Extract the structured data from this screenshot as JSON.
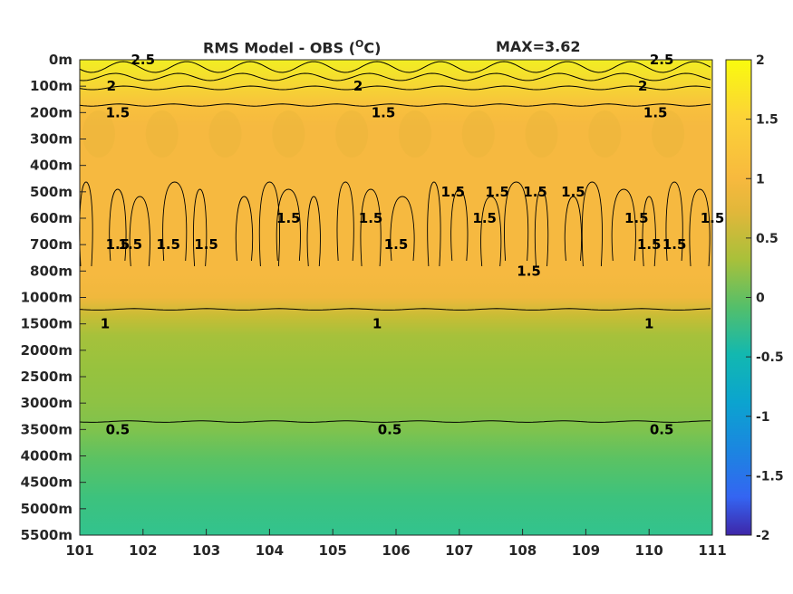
{
  "title": {
    "main": "RMS Model - OBS (",
    "unit_sup": "O",
    "unit_rest": "C)",
    "max_label": "MAX=3.62"
  },
  "chart_data": {
    "type": "heatmap",
    "title": "RMS Model - OBS (oC)   MAX=3.62",
    "xlabel": "",
    "ylabel": "",
    "x_ticks": [
      "101",
      "102",
      "103",
      "104",
      "105",
      "106",
      "107",
      "108",
      "109",
      "110",
      "111"
    ],
    "y_ticks": [
      "0m",
      "100m",
      "200m",
      "300m",
      "400m",
      "500m",
      "600m",
      "700m",
      "800m",
      "1000m",
      "1500m",
      "2000m",
      "2500m",
      "3000m",
      "3500m",
      "4000m",
      "4500m",
      "5000m",
      "5500m"
    ],
    "xlim": [
      101,
      111
    ],
    "ylim_levels": [
      "0m",
      "5500m"
    ],
    "y_reversed": true,
    "colorbar": {
      "range": [
        -2,
        2
      ],
      "ticks": [
        "2",
        "1.5",
        "1",
        "0.5",
        "0",
        "-0.5",
        "-1",
        "-1.5",
        "-2"
      ],
      "colormap": "parula"
    },
    "depth_profile": [
      {
        "depth": "0m",
        "value": 2.3
      },
      {
        "depth": "100m",
        "value": 1.9
      },
      {
        "depth": "200m",
        "value": 1.42
      },
      {
        "depth": "300m",
        "value": 1.38
      },
      {
        "depth": "400m",
        "value": 1.4
      },
      {
        "depth": "500m",
        "value": 1.45
      },
      {
        "depth": "600m",
        "value": 1.47
      },
      {
        "depth": "700m",
        "value": 1.47
      },
      {
        "depth": "800m",
        "value": 1.45
      },
      {
        "depth": "1000m",
        "value": 1.15
      },
      {
        "depth": "1500m",
        "value": 0.82
      },
      {
        "depth": "2000m",
        "value": 0.8
      },
      {
        "depth": "2500m",
        "value": 0.78
      },
      {
        "depth": "3000m",
        "value": 0.72
      },
      {
        "depth": "3500m",
        "value": 0.6
      },
      {
        "depth": "4000m",
        "value": 0.52
      },
      {
        "depth": "4500m",
        "value": 0.45
      },
      {
        "depth": "5000m",
        "value": 0.42
      },
      {
        "depth": "5500m",
        "value": 0.4
      }
    ],
    "contour_levels": [
      "0.5",
      "1",
      "1.5",
      "2",
      "2.5"
    ],
    "contour_labels": [
      {
        "text": "2.5",
        "x": 102.0,
        "depth": "0m"
      },
      {
        "text": "2.5",
        "x": 110.2,
        "depth": "0m"
      },
      {
        "text": "2",
        "x": 101.5,
        "depth": "100m"
      },
      {
        "text": "2",
        "x": 105.4,
        "depth": "100m"
      },
      {
        "text": "2",
        "x": 109.9,
        "depth": "100m"
      },
      {
        "text": "1.5",
        "x": 101.6,
        "depth": "200m"
      },
      {
        "text": "1.5",
        "x": 105.8,
        "depth": "200m"
      },
      {
        "text": "1.5",
        "x": 110.1,
        "depth": "200m"
      },
      {
        "text": "1.5",
        "x": 104.3,
        "depth": "600m"
      },
      {
        "text": "1.5",
        "x": 105.6,
        "depth": "600m"
      },
      {
        "text": "1.5",
        "x": 106.9,
        "depth": "500m"
      },
      {
        "text": "1.5",
        "x": 107.4,
        "depth": "600m"
      },
      {
        "text": "1.5",
        "x": 107.6,
        "depth": "500m"
      },
      {
        "text": "1.5",
        "x": 108.2,
        "depth": "500m"
      },
      {
        "text": "1.5",
        "x": 108.8,
        "depth": "500m"
      },
      {
        "text": "1.5",
        "x": 101.6,
        "depth": "700m"
      },
      {
        "text": "1.5",
        "x": 101.8,
        "depth": "700m"
      },
      {
        "text": "1.5",
        "x": 102.4,
        "depth": "700m"
      },
      {
        "text": "1.5",
        "x": 103.0,
        "depth": "700m"
      },
      {
        "text": "1.5",
        "x": 106.0,
        "depth": "700m"
      },
      {
        "text": "1.5",
        "x": 108.1,
        "depth": "800m"
      },
      {
        "text": "1.5",
        "x": 109.8,
        "depth": "600m"
      },
      {
        "text": "1.5",
        "x": 110.0,
        "depth": "700m"
      },
      {
        "text": "1.5",
        "x": 110.4,
        "depth": "700m"
      },
      {
        "text": "1.5",
        "x": 111.0,
        "depth": "600m"
      },
      {
        "text": "1",
        "x": 101.4,
        "depth": "1500m"
      },
      {
        "text": "1",
        "x": 105.7,
        "depth": "1500m"
      },
      {
        "text": "1",
        "x": 110.0,
        "depth": "1500m"
      },
      {
        "text": "0.5",
        "x": 101.6,
        "depth": "3500m"
      },
      {
        "text": "0.5",
        "x": 105.9,
        "depth": "3500m"
      },
      {
        "text": "0.5",
        "x": 110.2,
        "depth": "3500m"
      }
    ]
  }
}
